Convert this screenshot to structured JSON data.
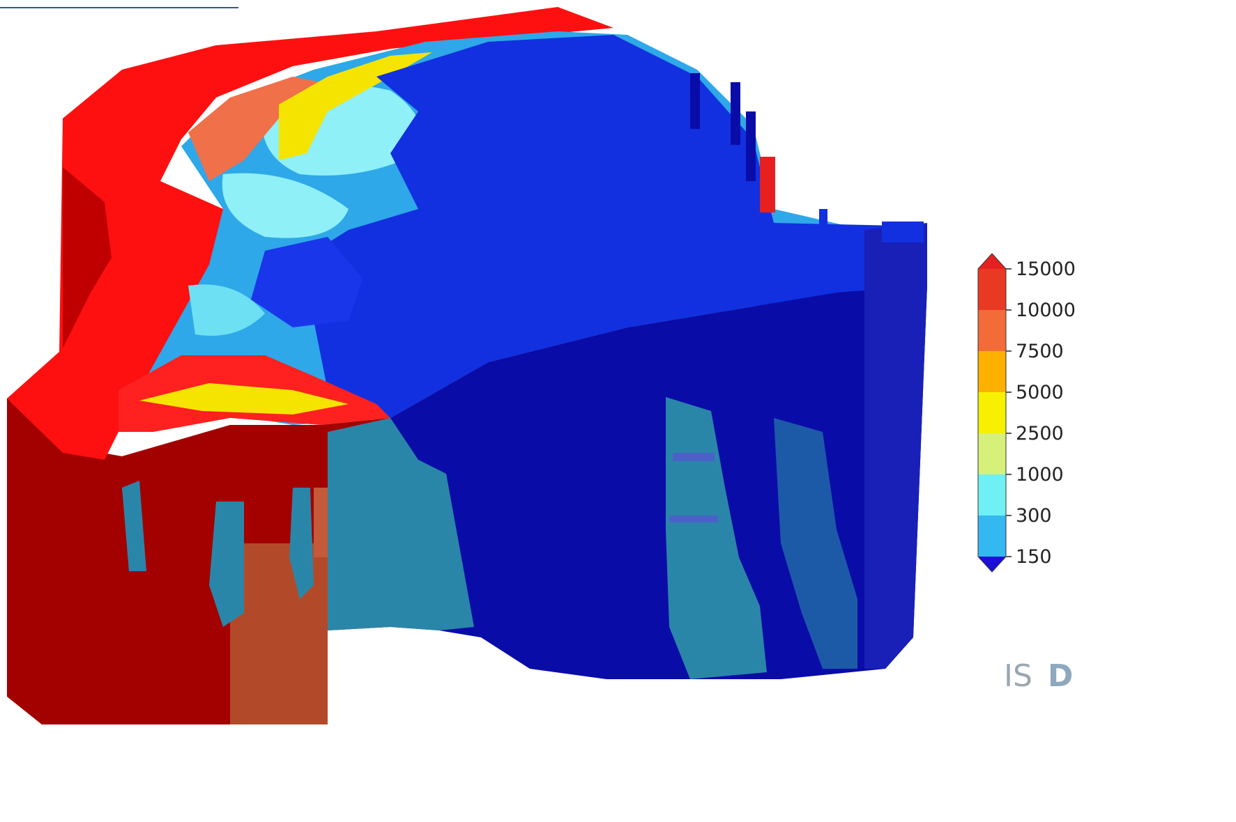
{
  "colorbar": {
    "ticks": [
      "15000",
      "10000",
      "7500",
      "5000",
      "2500",
      "1000",
      "300",
      "150"
    ],
    "colors": [
      "#e83a22",
      "#f46b3a",
      "#fcb000",
      "#f7f000",
      "#d7f07a",
      "#6ef0f4",
      "#34b8f0",
      "#3c6cf0",
      "#2b3fe0"
    ],
    "over_color": "#e62020",
    "under_color": "#1a10d8"
  },
  "palette": {
    "deep_red": "#a30000",
    "red": "#ff1010",
    "orange": "#f0704a",
    "yellow": "#f5e400",
    "light_cyan": "#8ff0f8",
    "cyan": "#2ea8e8",
    "blue": "#1230e0",
    "navy": "#0a0ca8",
    "teal": "#2a86a8",
    "brick": "#b24a2a"
  },
  "watermark": {
    "part1": "IS",
    "part2": "D"
  }
}
